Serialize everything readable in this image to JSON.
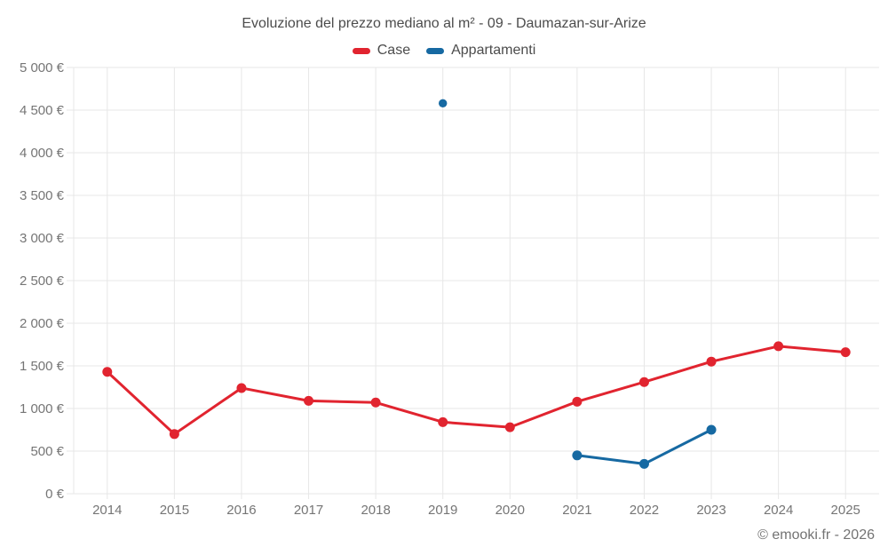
{
  "title": "Evoluzione del prezzo mediano al m² - 09 - Daumazan-sur-Arize",
  "legend": [
    {
      "label": "Case",
      "color": "#e1242f"
    },
    {
      "label": "Appartamenti",
      "color": "#1669a2"
    }
  ],
  "copyright": "© emooki.fr - 2026",
  "colors": {
    "case_red": "#e1242f",
    "appartamenti_blue": "#1669a2",
    "grid": "#e7e7e7",
    "tick_text": "#757575",
    "title_text": "#4c4c4c"
  },
  "chart_data": {
    "type": "line",
    "title": "Evoluzione del prezzo mediano al m² - 09 - Daumazan-sur-Arize",
    "categories": [
      "2014",
      "2015",
      "2016",
      "2017",
      "2018",
      "2019",
      "2020",
      "2021",
      "2022",
      "2023",
      "2024",
      "2025"
    ],
    "series": [
      {
        "name": "Case",
        "color": "#e1242f",
        "values": [
          1430,
          700,
          1240,
          1090,
          1070,
          840,
          780,
          1080,
          1310,
          1550,
          1730,
          1660
        ]
      },
      {
        "name": "Appartamenti",
        "color": "#1669a2",
        "values": [
          null,
          null,
          null,
          null,
          null,
          4580,
          null,
          450,
          350,
          750,
          null,
          null
        ]
      }
    ],
    "xlabel": "",
    "ylabel": "",
    "ylim": [
      0,
      5000
    ],
    "ytick_step": 500,
    "ytick_labels": [
      "0 €",
      "500 €",
      "1 000 €",
      "1 500 €",
      "2 000 €",
      "2 500 €",
      "3 000 €",
      "3 500 €",
      "4 000 €",
      "4 500 €",
      "5 000 €"
    ],
    "grid": true,
    "legend_position": "top",
    "unit": "€/m²"
  }
}
